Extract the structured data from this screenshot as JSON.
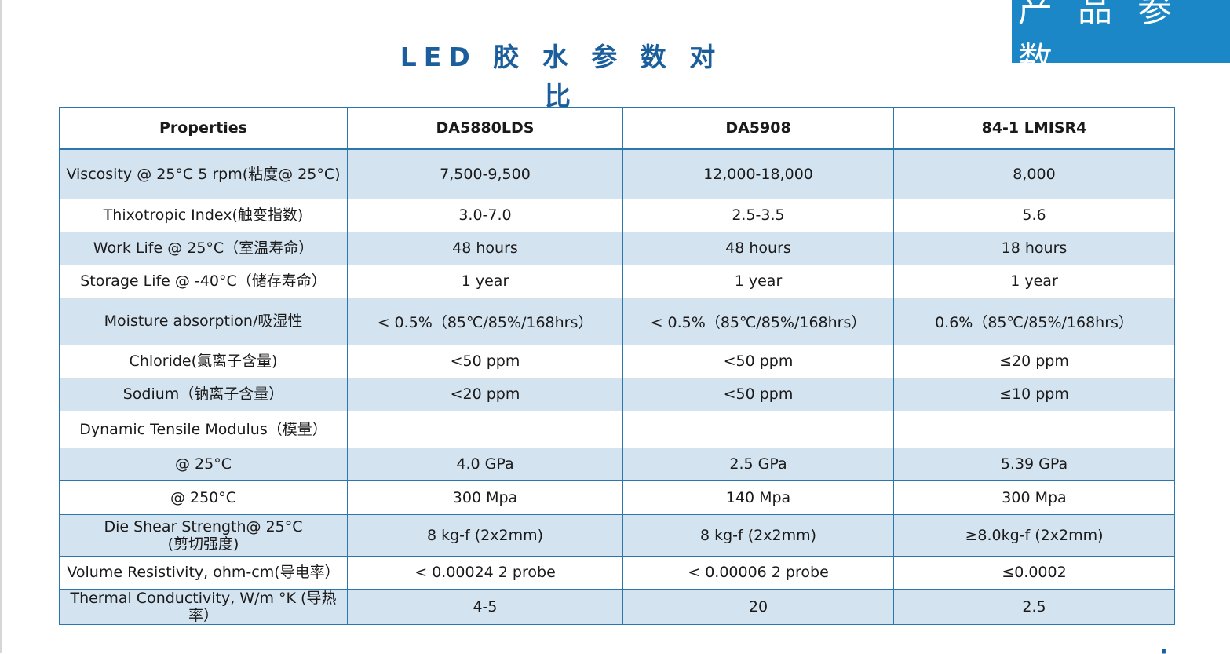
{
  "banner": {
    "text": "产 品 参 数"
  },
  "title": "LED 胶 水 参 数 对 比",
  "table": {
    "headers": [
      "Properties",
      "DA5880LDS",
      "DA5908",
      "84-1 LMISR4"
    ],
    "rows": [
      {
        "cells": [
          "Viscosity @ 25°C 5 rpm(粘度@ 25°C)",
          "7,500-9,500",
          "12,000-18,000",
          "8,000"
        ],
        "shaded": true
      },
      {
        "cells": [
          "Thixotropic Index(触变指数)",
          "3.0-7.0",
          "2.5-3.5",
          "5.6"
        ],
        "shaded": false
      },
      {
        "cells": [
          "Work Life @ 25°C（室温寿命）",
          "48 hours",
          "48 hours",
          "18 hours"
        ],
        "shaded": true
      },
      {
        "cells": [
          "Storage Life @ -40°C（储存寿命）",
          "1 year",
          "1 year",
          "1 year"
        ],
        "shaded": false
      },
      {
        "cells": [
          "Moisture absorption/吸湿性",
          "< 0.5%（85℃/85%/168hrs）",
          "< 0.5%（85℃/85%/168hrs）",
          "0.6%（85℃/85%/168hrs）"
        ],
        "shaded": true
      },
      {
        "cells": [
          "Chloride(氯离子含量)",
          "<50 ppm",
          "<50 ppm",
          "≤20 ppm"
        ],
        "shaded": false
      },
      {
        "cells": [
          "Sodium（钠离子含量）",
          "<20 ppm",
          "<50 ppm",
          "≤10 ppm"
        ],
        "shaded": true
      },
      {
        "cells": [
          "Dynamic Tensile Modulus（模量）",
          "",
          "",
          ""
        ],
        "shaded": false
      },
      {
        "cells": [
          "@ 25°C",
          "4.0  GPa",
          "2.5  GPa",
          "5.39  GPa"
        ],
        "shaded": true
      },
      {
        "cells": [
          "@ 250°C",
          "300 Mpa",
          "140 Mpa",
          "300 Mpa"
        ],
        "shaded": false
      },
      {
        "cells": [
          "Die Shear Strength@ 25°C\n(剪切强度)",
          "8 kg-f (2x2mm)",
          "8 kg-f (2x2mm)",
          "≥8.0kg-f (2x2mm)"
        ],
        "shaded": true
      },
      {
        "cells": [
          "Volume Resistivity, ohm-cm(导电率）",
          "< 0.00024 2 probe",
          "< 0.00006 2 probe",
          "≤0.0002"
        ],
        "shaded": false
      },
      {
        "cells": [
          "Thermal Conductivity, W/m °K (导热率）",
          "4-5",
          "20",
          "2.5"
        ],
        "shaded": true
      }
    ]
  }
}
